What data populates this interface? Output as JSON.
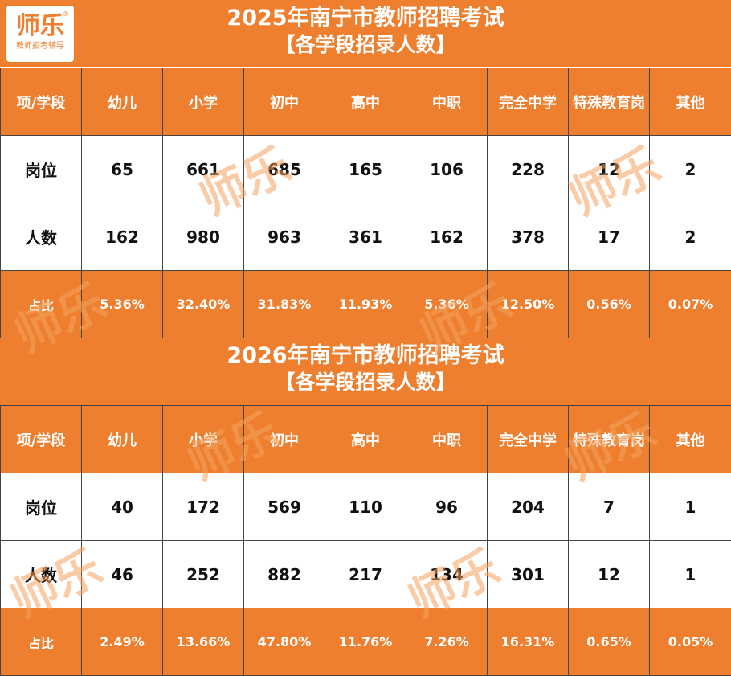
{
  "logo": {
    "text": "师乐",
    "subtitle": "教师招考辅导",
    "mark": "®"
  },
  "watermark": "师乐",
  "colors": {
    "accent": "#EE7F2F",
    "header_text": "#FFFFFF",
    "body_bg": "#FFFFFF"
  },
  "tables": [
    {
      "title": "2025年南宁市教师招聘考试",
      "subtitle": "【各学段招录人数】",
      "headers": [
        "项/学段",
        "幼儿",
        "小学",
        "初中",
        "高中",
        "中职",
        "完全中学",
        "特殊教育岗",
        "其他"
      ],
      "rows": [
        {
          "label": "岗位",
          "values": [
            "65",
            "661",
            "685",
            "165",
            "106",
            "228",
            "12",
            "2"
          ]
        },
        {
          "label": "人数",
          "values": [
            "162",
            "980",
            "963",
            "361",
            "162",
            "378",
            "17",
            "2"
          ]
        },
        {
          "label": "占比",
          "values": [
            "5.36%",
            "32.40%",
            "31.83%",
            "11.93%",
            "5.36%",
            "12.50%",
            "0.56%",
            "0.07%"
          ]
        }
      ]
    },
    {
      "title": "2026年南宁市教师招聘考试",
      "subtitle": "【各学段招录人数】",
      "headers": [
        "项/学段",
        "幼儿",
        "小学",
        "初中",
        "高中",
        "中职",
        "完全中学",
        "特殊教育岗",
        "其他"
      ],
      "rows": [
        {
          "label": "岗位",
          "values": [
            "40",
            "172",
            "569",
            "110",
            "96",
            "204",
            "7",
            "1"
          ]
        },
        {
          "label": "人数",
          "values": [
            "46",
            "252",
            "882",
            "217",
            "134",
            "301",
            "12",
            "1"
          ]
        },
        {
          "label": "占比",
          "values": [
            "2.49%",
            "13.66%",
            "47.80%",
            "11.76%",
            "7.26%",
            "16.31%",
            "0.65%",
            "0.05%"
          ]
        }
      ]
    }
  ]
}
